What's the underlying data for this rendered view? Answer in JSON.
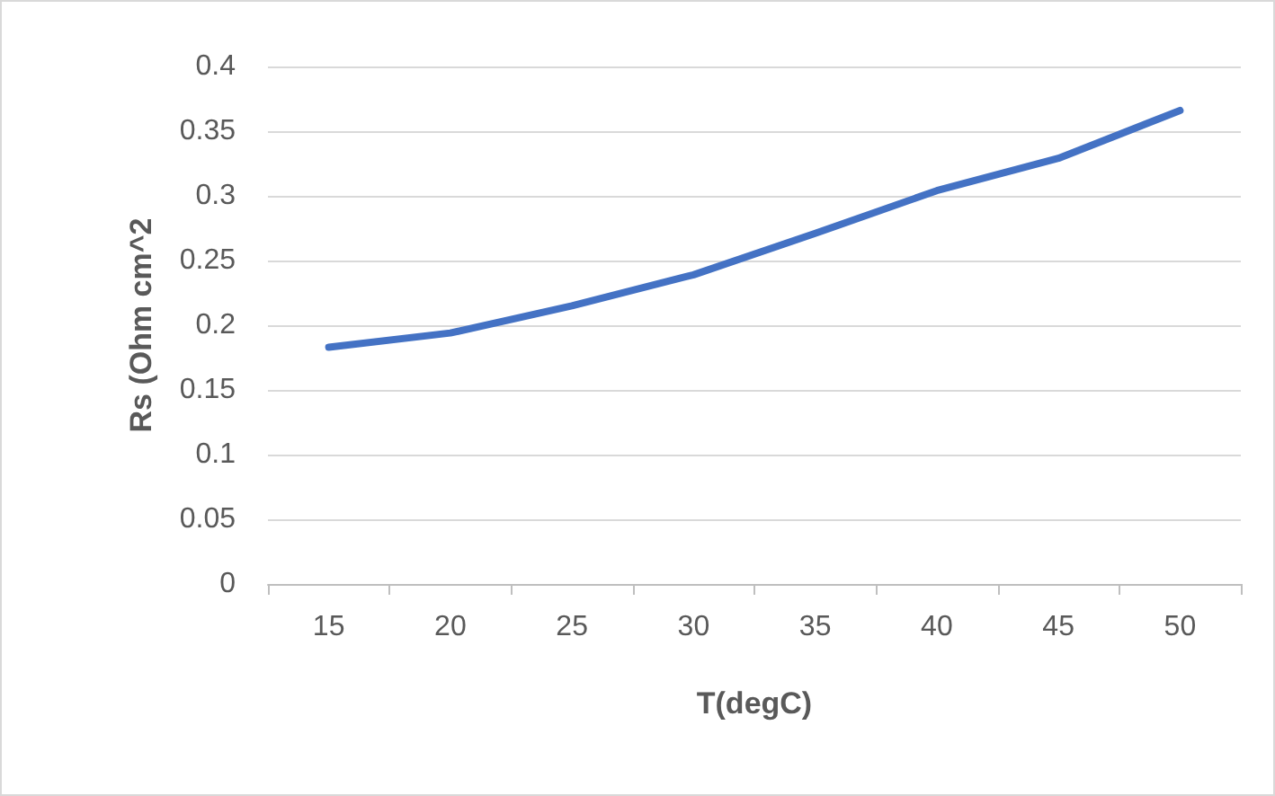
{
  "chart_data": {
    "type": "line",
    "xlabel": "T(degC)",
    "ylabel": "Rs (Ohm cm^2",
    "categories": [
      "15",
      "20",
      "25",
      "30",
      "35",
      "40",
      "45",
      "50"
    ],
    "series": [
      {
        "color": "#4472c4",
        "values": [
          0.183,
          0.194,
          0.215,
          0.239,
          0.271,
          0.304,
          0.329,
          0.366
        ]
      }
    ],
    "ylim": [
      0,
      0.4
    ],
    "yticks": [
      0,
      0.05,
      0.1,
      0.15,
      0.2,
      0.25,
      0.3,
      0.35,
      0.4
    ],
    "grid": "y",
    "marker": "none",
    "line_style": "solid"
  }
}
